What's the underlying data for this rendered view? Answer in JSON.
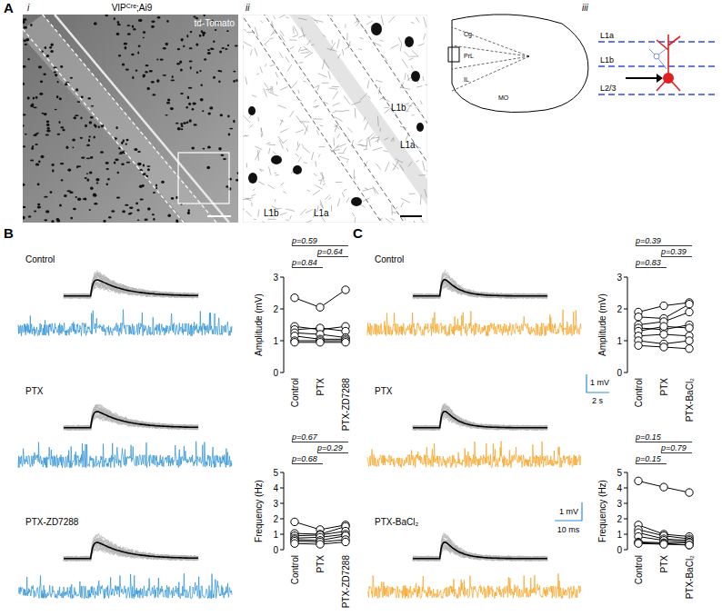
{
  "panel_a": {
    "letter": "A",
    "image_i": {
      "label": "i",
      "title": "VIP",
      "title_superscript": "Cre",
      "title_suffix": ";Ai9",
      "channel": "td-Tomato"
    },
    "image_ii": {
      "label": "ii",
      "layers": [
        "L1b",
        "L1a",
        "L1b",
        "L1a"
      ]
    },
    "schematic_iii": {
      "label": "iii",
      "regions": [
        "Cg",
        "PrL",
        "IL",
        "MO"
      ],
      "layers": [
        "L1a",
        "L1b",
        "L2/3"
      ]
    }
  },
  "panel_b": {
    "letter": "B",
    "traces": [
      "Control",
      "PTX",
      "PTX-ZD7288"
    ],
    "trace_color": "#2b8fd2"
  },
  "panel_c": {
    "letter": "C",
    "traces": [
      "Control",
      "PTX",
      "PTX-BaCl₂"
    ],
    "trace_color": "#f5a01e",
    "scale_bars": [
      {
        "vertical": "1 mV",
        "horizontal": "2 s"
      },
      {
        "vertical": "1 mV",
        "horizontal": "10 ms"
      }
    ]
  },
  "chart_data": [
    {
      "type": "line",
      "ylabel": "Amplitude (mV)",
      "categories": [
        "Control",
        "PTX",
        "PTX-ZD7288"
      ],
      "series": [
        {
          "values": [
            2.35,
            2.05,
            2.6
          ]
        },
        {
          "values": [
            1.45,
            1.35,
            1.45
          ]
        },
        {
          "values": [
            1.35,
            1.4,
            1.3
          ]
        },
        {
          "values": [
            1.25,
            1.2,
            1.1
          ]
        },
        {
          "values": [
            1.15,
            1.05,
            1.05
          ]
        },
        {
          "values": [
            1.0,
            1.0,
            1.0
          ]
        },
        {
          "values": [
            0.95,
            0.95,
            0.95
          ]
        }
      ],
      "ylim": [
        0,
        3
      ],
      "yticks": [
        0,
        1,
        2,
        3
      ],
      "marker": "circle",
      "color": "#000000",
      "annotations": [
        {
          "text": "p=0.59",
          "from": 0,
          "to": 2
        },
        {
          "text": "p=0.64",
          "from": 1,
          "to": 2
        },
        {
          "text": "p=0.84",
          "from": 0,
          "to": 1
        }
      ]
    },
    {
      "type": "line",
      "ylabel": "Frequency (Hz)",
      "categories": [
        "Control",
        "PTX",
        "PTX-ZD7288"
      ],
      "series": [
        {
          "values": [
            1.8,
            1.3,
            1.6
          ]
        },
        {
          "values": [
            1.05,
            1.0,
            1.5
          ]
        },
        {
          "values": [
            0.9,
            0.95,
            1.2
          ]
        },
        {
          "values": [
            0.75,
            0.8,
            1.0
          ]
        },
        {
          "values": [
            0.65,
            0.6,
            0.9
          ]
        },
        {
          "values": [
            0.55,
            0.5,
            0.65
          ]
        },
        {
          "values": [
            0.4,
            0.35,
            0.5
          ]
        }
      ],
      "ylim": [
        0,
        5
      ],
      "yticks": [
        0,
        1,
        2,
        3,
        4,
        5
      ],
      "marker": "circle",
      "color": "#000000",
      "annotations": [
        {
          "text": "p=0.67",
          "from": 0,
          "to": 2
        },
        {
          "text": "p=0.29",
          "from": 1,
          "to": 2
        },
        {
          "text": "p=0.68",
          "from": 0,
          "to": 1
        }
      ]
    },
    {
      "type": "line",
      "ylabel": "Amplitude (mV)",
      "categories": [
        "Control",
        "PTX",
        "PTX-BaCl₂"
      ],
      "series": [
        {
          "values": [
            1.9,
            2.1,
            2.2
          ]
        },
        {
          "values": [
            1.75,
            1.7,
            2.15
          ]
        },
        {
          "values": [
            1.5,
            1.6,
            1.9
          ]
        },
        {
          "values": [
            1.4,
            1.35,
            1.5
          ]
        },
        {
          "values": [
            1.3,
            1.45,
            1.4
          ]
        },
        {
          "values": [
            1.15,
            1.2,
            1.15
          ]
        },
        {
          "values": [
            1.0,
            0.9,
            1.0
          ]
        },
        {
          "values": [
            0.85,
            0.8,
            0.75
          ]
        }
      ],
      "ylim": [
        0,
        3
      ],
      "yticks": [
        0,
        1,
        2,
        3
      ],
      "marker": "circle",
      "color": "#000000",
      "annotations": [
        {
          "text": "p=0.39",
          "from": 0,
          "to": 2
        },
        {
          "text": "p=0.39",
          "from": 1,
          "to": 2
        },
        {
          "text": "p=0.83",
          "from": 0,
          "to": 1
        }
      ]
    },
    {
      "type": "line",
      "ylabel": "Frequency (Hz)",
      "categories": [
        "Control",
        "PTX",
        "PTX-BaCl₂"
      ],
      "series": [
        {
          "values": [
            4.45,
            4.05,
            3.7
          ]
        },
        {
          "values": [
            1.6,
            1.0,
            0.85
          ]
        },
        {
          "values": [
            1.3,
            0.9,
            0.7
          ]
        },
        {
          "values": [
            1.1,
            0.7,
            0.6
          ]
        },
        {
          "values": [
            0.85,
            0.6,
            0.5
          ]
        },
        {
          "values": [
            0.5,
            0.45,
            0.45
          ]
        },
        {
          "values": [
            0.45,
            0.4,
            0.3
          ]
        },
        {
          "values": [
            0.4,
            0.35,
            0.3
          ]
        }
      ],
      "ylim": [
        0,
        5
      ],
      "yticks": [
        0,
        1,
        2,
        3,
        4,
        5
      ],
      "marker": "circle",
      "color": "#000000",
      "annotations": [
        {
          "text": "p=0.15",
          "from": 0,
          "to": 2
        },
        {
          "text": "p=0.79",
          "from": 1,
          "to": 2
        },
        {
          "text": "p=0.15",
          "from": 0,
          "to": 1
        }
      ]
    }
  ]
}
